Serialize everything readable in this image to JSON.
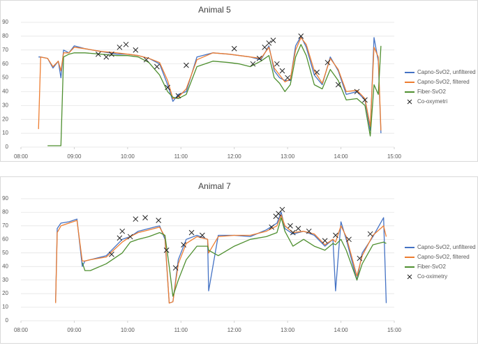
{
  "chart_data": [
    {
      "type": "line",
      "title": "Animal 5",
      "x": [
        8.33,
        8.37,
        8.5,
        8.6,
        8.7,
        8.75,
        8.8,
        8.9,
        9.0,
        9.2,
        9.5,
        9.8,
        10.0,
        10.2,
        10.4,
        10.6,
        10.75,
        10.85,
        10.95,
        11.1,
        11.3,
        11.6,
        11.9,
        12.1,
        12.3,
        12.5,
        12.65,
        12.75,
        12.85,
        12.95,
        13.05,
        13.15,
        13.25,
        13.35,
        13.5,
        13.65,
        13.8,
        13.95,
        14.1,
        14.3,
        14.45,
        14.55,
        14.62,
        14.7,
        14.75
      ],
      "series": [
        {
          "name": "Capno-SvO2, unfiltered",
          "color": "#4472c4",
          "values": [
            65,
            65,
            64,
            57,
            62,
            50,
            70,
            68,
            73,
            71,
            69,
            67,
            67,
            66,
            64,
            60,
            45,
            33,
            38,
            40,
            65,
            68,
            67,
            66,
            65,
            63,
            73,
            55,
            50,
            48,
            48,
            73,
            80,
            72,
            52,
            45,
            65,
            55,
            38,
            40,
            34,
            12,
            79,
            62,
            10
          ]
        },
        {
          "name": "Capno-SvO2, filtered",
          "color": "#ed7d31",
          "values": [
            13,
            65,
            64,
            58,
            62,
            55,
            68,
            68,
            72,
            71,
            69,
            68,
            67,
            66,
            64,
            61,
            48,
            35,
            36,
            42,
            63,
            68,
            67,
            66,
            65,
            64,
            72,
            57,
            52,
            47,
            49,
            70,
            79,
            74,
            55,
            46,
            64,
            56,
            40,
            41,
            35,
            15,
            72,
            65,
            12
          ]
        },
        {
          "name": "Fiber-SvO2",
          "color": "#4e8f2f",
          "values": [
            null,
            null,
            1,
            1,
            1,
            1,
            65,
            67,
            68,
            68,
            67,
            66,
            66,
            65,
            61,
            52,
            40,
            36,
            35,
            38,
            58,
            62,
            61,
            60,
            58,
            62,
            66,
            50,
            46,
            40,
            45,
            65,
            74,
            66,
            45,
            42,
            56,
            48,
            34,
            35,
            30,
            8,
            45,
            38,
            73
          ]
        }
      ],
      "scatter": {
        "name": "Co-oxymetri",
        "color": "#222222",
        "x": [
          9.45,
          9.6,
          9.7,
          9.85,
          9.97,
          10.15,
          10.35,
          10.55,
          10.75,
          10.95,
          11.1,
          12.0,
          12.35,
          12.47,
          12.57,
          12.65,
          12.73,
          12.8,
          12.9,
          13.0,
          13.25,
          13.55,
          13.75,
          13.95,
          14.3,
          14.45
        ],
        "values": [
          67,
          65,
          67,
          72,
          74,
          70,
          63,
          58,
          43,
          37,
          59,
          71,
          60,
          64,
          72,
          75,
          77,
          60,
          55,
          50,
          80,
          54,
          61,
          45,
          40,
          34
        ]
      },
      "xlim": [
        8,
        15
      ],
      "xticks": [
        {
          "value": 8,
          "label": "08:00"
        },
        {
          "value": 9,
          "label": "09:00"
        },
        {
          "value": 10,
          "label": "10:00"
        },
        {
          "value": 11,
          "label": "11:00"
        },
        {
          "value": 12,
          "label": "12:00"
        },
        {
          "value": 13,
          "label": "13:00"
        },
        {
          "value": 14,
          "label": "14:00"
        },
        {
          "value": 15,
          "label": "15:00"
        }
      ],
      "ylim": [
        0,
        90
      ],
      "yticks": [
        0,
        10,
        20,
        30,
        40,
        50,
        60,
        70,
        80,
        90
      ],
      "grid": true,
      "legend": "right"
    },
    {
      "type": "line",
      "title": "Animal 7",
      "x": [
        8.65,
        8.68,
        8.75,
        8.9,
        9.05,
        9.15,
        9.2,
        9.3,
        9.6,
        9.9,
        10.05,
        10.2,
        10.4,
        10.6,
        10.7,
        10.78,
        10.85,
        10.95,
        11.1,
        11.3,
        11.5,
        11.52,
        11.7,
        12.0,
        12.3,
        12.6,
        12.8,
        12.88,
        12.95,
        13.1,
        13.3,
        13.5,
        13.7,
        13.85,
        13.9,
        14.0,
        14.1,
        14.3,
        14.4,
        14.6,
        14.8,
        14.85
      ],
      "series": [
        {
          "name": "Capno-SvO2, unfiltered",
          "color": "#4472c4",
          "values": [
            14,
            68,
            72,
            73,
            75,
            40,
            44,
            45,
            48,
            60,
            62,
            66,
            68,
            70,
            60,
            13,
            14,
            45,
            60,
            63,
            60,
            22,
            63,
            63,
            62,
            67,
            72,
            80,
            68,
            64,
            66,
            63,
            55,
            60,
            22,
            73,
            60,
            30,
            50,
            62,
            76,
            13
          ]
        },
        {
          "name": "Capno-SvO2, filtered",
          "color": "#ed7d31",
          "values": [
            13,
            65,
            70,
            72,
            74,
            44,
            44,
            45,
            47,
            58,
            62,
            65,
            67,
            69,
            62,
            13,
            14,
            42,
            57,
            62,
            60,
            50,
            62,
            63,
            63,
            66,
            70,
            78,
            70,
            65,
            66,
            64,
            56,
            60,
            58,
            70,
            62,
            33,
            48,
            63,
            70,
            62
          ]
        },
        {
          "name": "Fiber-SvO2",
          "color": "#4e8f2f",
          "values": [
            null,
            null,
            null,
            null,
            null,
            43,
            37,
            37,
            42,
            50,
            58,
            60,
            62,
            65,
            63,
            40,
            18,
            30,
            45,
            55,
            55,
            52,
            48,
            55,
            60,
            62,
            65,
            76,
            66,
            55,
            60,
            55,
            52,
            57,
            56,
            60,
            52,
            30,
            42,
            56,
            58,
            57
          ]
        }
      ],
      "scatter": {
        "name": "Co-oximetry",
        "color": "#222222",
        "x": [
          9.7,
          9.85,
          9.9,
          10.05,
          10.15,
          10.33,
          10.58,
          10.73,
          10.9,
          11.05,
          11.2,
          11.4,
          12.7,
          12.78,
          12.83,
          12.9,
          13.05,
          13.1,
          13.2,
          13.4,
          13.7,
          13.9,
          14.15,
          14.35,
          14.55
        ],
        "values": [
          49,
          61,
          66,
          62,
          75,
          76,
          74,
          52,
          39,
          56,
          65,
          63,
          69,
          77,
          79,
          82,
          70,
          65,
          68,
          66,
          59,
          63,
          60,
          46,
          64
        ]
      },
      "xlim": [
        8,
        15
      ],
      "xticks": [
        {
          "value": 8,
          "label": "08:00"
        },
        {
          "value": 9,
          "label": "09:00"
        },
        {
          "value": 10,
          "label": "10:00"
        },
        {
          "value": 11,
          "label": "11:00"
        },
        {
          "value": 12,
          "label": "12:00"
        },
        {
          "value": 13,
          "label": "13:00"
        },
        {
          "value": 14,
          "label": "14:00"
        },
        {
          "value": 15,
          "label": "15:00"
        }
      ],
      "ylim": [
        0,
        90
      ],
      "yticks": [
        0,
        10,
        20,
        30,
        40,
        50,
        60,
        70,
        80,
        90
      ],
      "grid": true,
      "legend": "right"
    }
  ]
}
